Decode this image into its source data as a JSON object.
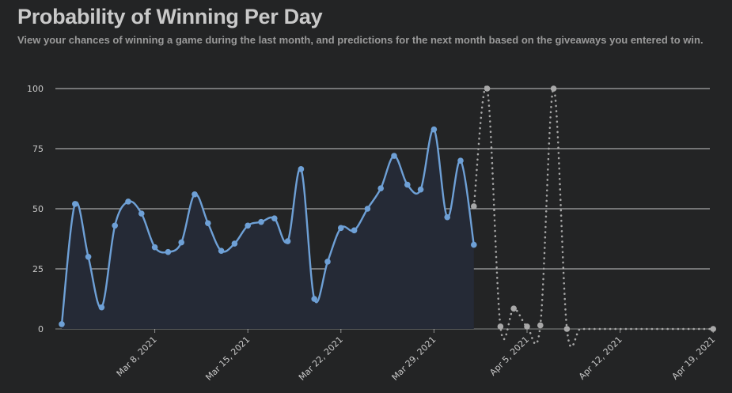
{
  "header": {
    "title": "Probability of Winning Per Day",
    "subtitle": "View your chances of winning a game during the last month, and predictions for the next month based on the giveaways you entered to win."
  },
  "colors": {
    "background": "#232425",
    "actual_line": "#6ea0d6",
    "actual_fill": "#252a36",
    "prediction_line": "#a8a8a8",
    "grid": "#d8d8d8"
  },
  "chart_data": {
    "type": "line",
    "x_axis_type": "date",
    "ylim": [
      0,
      100
    ],
    "yticks": [
      0,
      25,
      50,
      75,
      100
    ],
    "xlim": [
      "2021-03-01",
      "2021-04-20"
    ],
    "xticks": [
      {
        "date": "2021-03-08",
        "label": "Mar 8, 2021"
      },
      {
        "date": "2021-03-15",
        "label": "Mar 15, 2021"
      },
      {
        "date": "2021-03-22",
        "label": "Mar 22, 2021"
      },
      {
        "date": "2021-03-29",
        "label": "Mar 29, 2021"
      },
      {
        "date": "2021-04-05",
        "label": "Apr 5, 2021"
      },
      {
        "date": "2021-04-12",
        "label": "Apr 12, 2021"
      },
      {
        "date": "2021-04-19",
        "label": "Apr 19, 2021"
      }
    ],
    "grid": true,
    "series": [
      {
        "style": "solid",
        "points": [
          {
            "x": "2021-03-01",
            "y": 2
          },
          {
            "x": "2021-03-02",
            "y": 52
          },
          {
            "x": "2021-03-03",
            "y": 30
          },
          {
            "x": "2021-03-04",
            "y": 9
          },
          {
            "x": "2021-03-05",
            "y": 43
          },
          {
            "x": "2021-03-06",
            "y": 53
          },
          {
            "x": "2021-03-07",
            "y": 48
          },
          {
            "x": "2021-03-08",
            "y": 34
          },
          {
            "x": "2021-03-09",
            "y": 32
          },
          {
            "x": "2021-03-10",
            "y": 36
          },
          {
            "x": "2021-03-11",
            "y": 56
          },
          {
            "x": "2021-03-12",
            "y": 44
          },
          {
            "x": "2021-03-13",
            "y": 32.5
          },
          {
            "x": "2021-03-14",
            "y": 35.5
          },
          {
            "x": "2021-03-15",
            "y": 43
          },
          {
            "x": "2021-03-16",
            "y": 44.5
          },
          {
            "x": "2021-03-17",
            "y": 46
          },
          {
            "x": "2021-03-18",
            "y": 36.5
          },
          {
            "x": "2021-03-19",
            "y": 66.5
          },
          {
            "x": "2021-03-20",
            "y": 12.5
          },
          {
            "x": "2021-03-21",
            "y": 28
          },
          {
            "x": "2021-03-22",
            "y": 42
          },
          {
            "x": "2021-03-23",
            "y": 41
          },
          {
            "x": "2021-03-24",
            "y": 50
          },
          {
            "x": "2021-03-25",
            "y": 58.5
          },
          {
            "x": "2021-03-26",
            "y": 72
          },
          {
            "x": "2021-03-27",
            "y": 60
          },
          {
            "x": "2021-03-28",
            "y": 58
          },
          {
            "x": "2021-03-29",
            "y": 83
          },
          {
            "x": "2021-03-30",
            "y": 46.5
          },
          {
            "x": "2021-03-31",
            "y": 70
          },
          {
            "x": "2021-04-01",
            "y": 35
          }
        ]
      },
      {
        "style": "dotted",
        "points": [
          {
            "x": "2021-04-01",
            "y": 51
          },
          {
            "x": "2021-04-02",
            "y": 100
          },
          {
            "x": "2021-04-03",
            "y": 1
          },
          {
            "x": "2021-04-04",
            "y": 8.5
          },
          {
            "x": "2021-04-05",
            "y": 1
          },
          {
            "x": "2021-04-06",
            "y": 1.5
          },
          {
            "x": "2021-04-07",
            "y": 100
          },
          {
            "x": "2021-04-08",
            "y": 0
          },
          {
            "x": "2021-04-09",
            "y": 0
          },
          {
            "x": "2021-04-10",
            "y": 0
          },
          {
            "x": "2021-04-11",
            "y": 0
          },
          {
            "x": "2021-04-12",
            "y": 0
          },
          {
            "x": "2021-04-13",
            "y": 0
          },
          {
            "x": "2021-04-14",
            "y": 0
          },
          {
            "x": "2021-04-15",
            "y": 0
          },
          {
            "x": "2021-04-16",
            "y": 0
          },
          {
            "x": "2021-04-17",
            "y": 0
          },
          {
            "x": "2021-04-18",
            "y": 0
          },
          {
            "x": "2021-04-19",
            "y": 0
          }
        ]
      }
    ]
  }
}
